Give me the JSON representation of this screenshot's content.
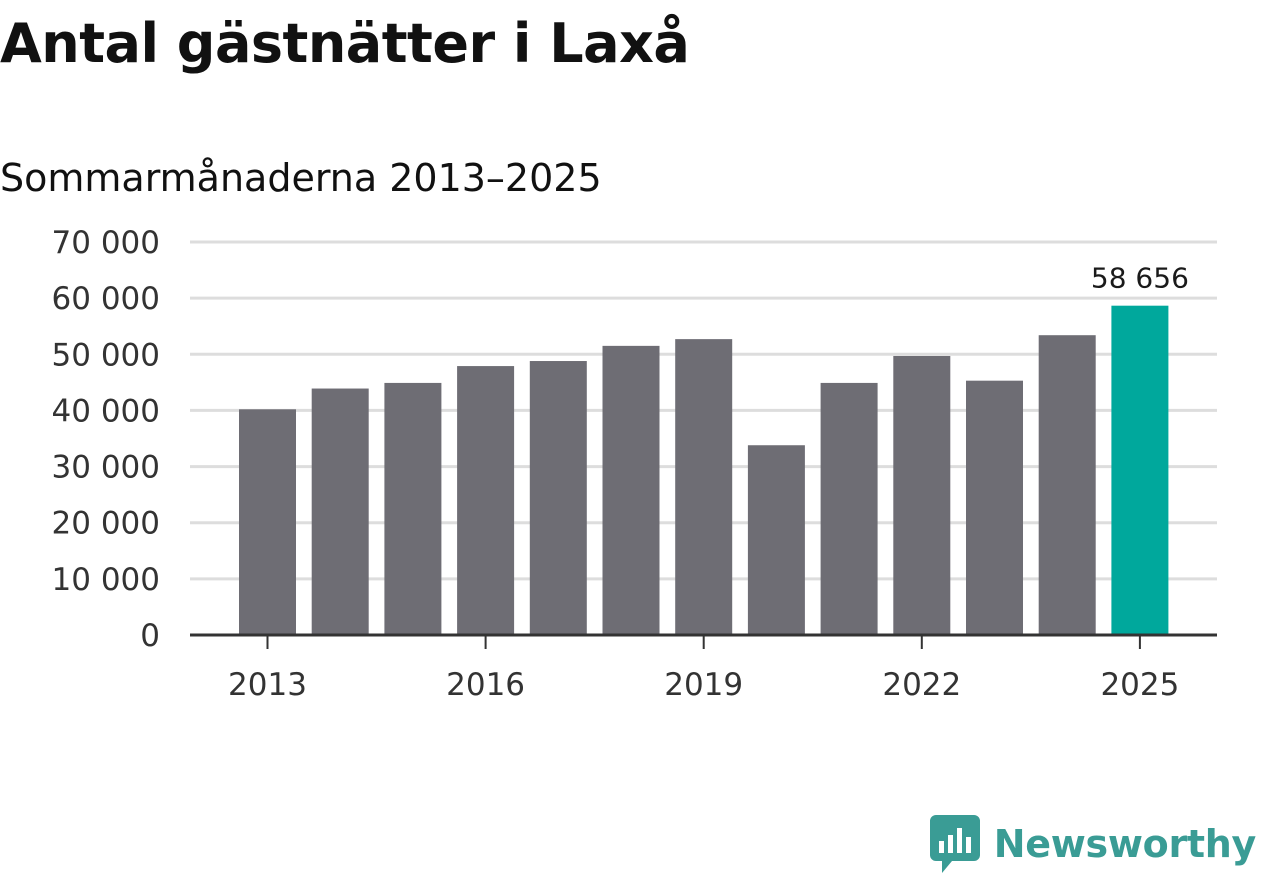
{
  "header": {
    "title": "Antal gästnätter i Laxå",
    "subtitle": "Sommarmånaderna 2013–2025"
  },
  "brand": {
    "name": "Newsworthy",
    "icon": "newsworthy-logo-icon"
  },
  "colors": {
    "bar": "#6e6d74",
    "highlight": "#00a89c",
    "grid": "#dddddd",
    "axis": "#333333",
    "brand": "#3a9c95"
  },
  "chart_data": {
    "type": "bar",
    "categories": [
      "2013",
      "2014",
      "2015",
      "2016",
      "2017",
      "2018",
      "2019",
      "2020",
      "2021",
      "2022",
      "2023",
      "2024",
      "2025"
    ],
    "values": [
      40200,
      43900,
      44900,
      47900,
      48800,
      51500,
      52700,
      33800,
      44900,
      49700,
      45300,
      53400,
      58656
    ],
    "ylim": [
      0,
      70000
    ],
    "yticks": [
      0,
      10000,
      20000,
      30000,
      40000,
      50000,
      60000,
      70000
    ],
    "ytick_labels": [
      "0",
      "10 000",
      "20 000",
      "30 000",
      "40 000",
      "50 000",
      "60 000",
      "70 000"
    ],
    "xtick_labels": [
      "2013",
      "2016",
      "2019",
      "2022",
      "2025"
    ],
    "highlight": {
      "category": "2025",
      "label": "58 656"
    },
    "grid": true,
    "title": "Antal gästnätter i Laxå",
    "subtitle": "Sommarmånaderna 2013–2025",
    "xlabel": "",
    "ylabel": ""
  }
}
